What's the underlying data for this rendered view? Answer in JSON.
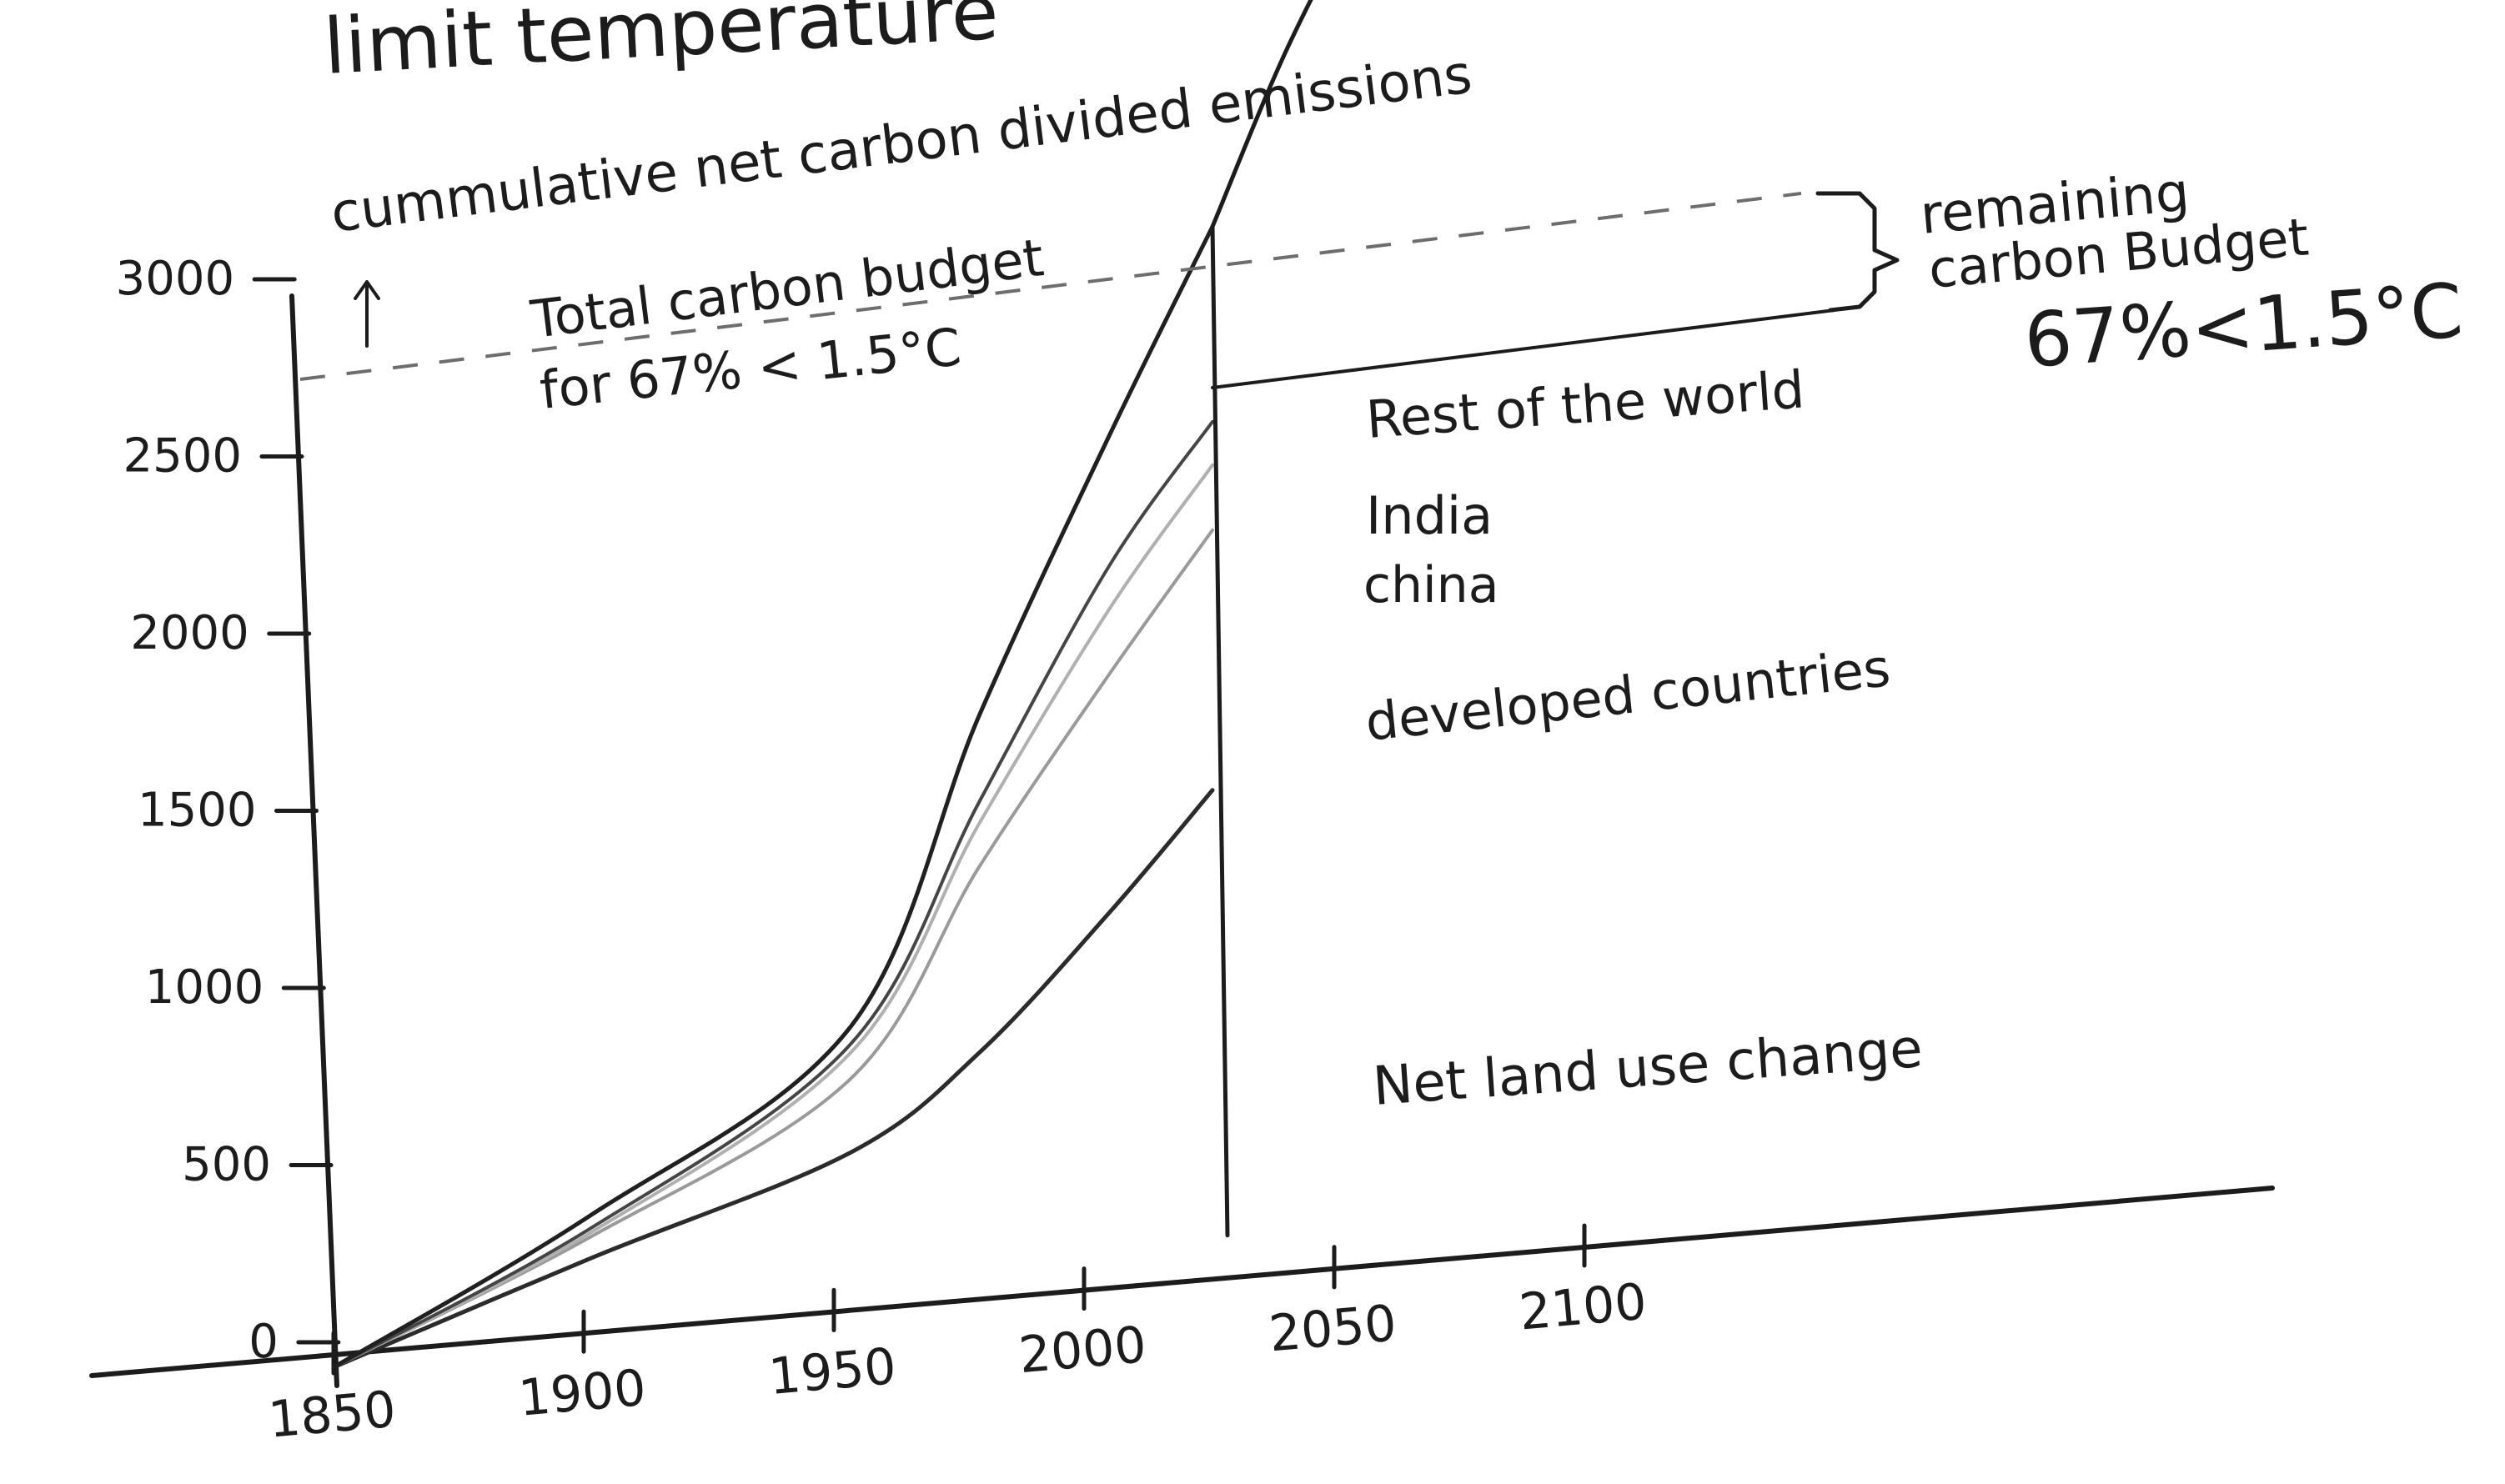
{
  "heading": "limit temperature",
  "chart_data": {
    "type": "area",
    "title": "cummulative net carbon divided emissions",
    "xlabel": "",
    "ylabel": "",
    "x_ticks": [
      1850,
      1900,
      1950,
      2000,
      2050,
      2100
    ],
    "x_tick_labels": [
      "1850",
      "1900",
      "1950",
      "2000",
      "2050",
      "2100"
    ],
    "y_ticks": [
      0,
      500,
      1000,
      1500,
      2000,
      2500,
      3000
    ],
    "y_tick_labels": [
      "0",
      "500",
      "1000",
      "1500",
      "2000",
      "2500",
      "3000"
    ],
    "xlim": [
      1850,
      2150
    ],
    "ylim": [
      0,
      3300
    ],
    "grid": false,
    "x": [
      1850,
      1900,
      1950,
      1975,
      2000,
      2020
    ],
    "series": [
      {
        "name": "Net land use change",
        "values": [
          0,
          170,
          330,
          520,
          800,
          1050
        ]
      },
      {
        "name": "developed countries",
        "values": [
          0,
          220,
          500,
          950,
          1350,
          1650
        ]
      },
      {
        "name": "china",
        "values": [
          0,
          230,
          560,
          1050,
          1500,
          1800
        ]
      },
      {
        "name": "India",
        "values": [
          0,
          240,
          580,
          1100,
          1600,
          1900
        ]
      },
      {
        "name": "Rest of the world",
        "values": [
          0,
          270,
          620,
          1300,
          1900,
          2350
        ]
      }
    ],
    "projection": {
      "x": [
        2020,
        2035,
        2050,
        2065,
        2080,
        2095
      ],
      "values": [
        2350,
        2750,
        3050,
        3200,
        3100,
        2850
      ]
    },
    "total_budget_y": 3050,
    "annotations": {
      "total_budget_line1": "Total carbon budget",
      "total_budget_line2": "for 67% < 1.5°C",
      "remaining_line1": "remaining",
      "remaining_line2": "carbon Budget",
      "remaining_line3": "67%<1.5°C"
    }
  }
}
